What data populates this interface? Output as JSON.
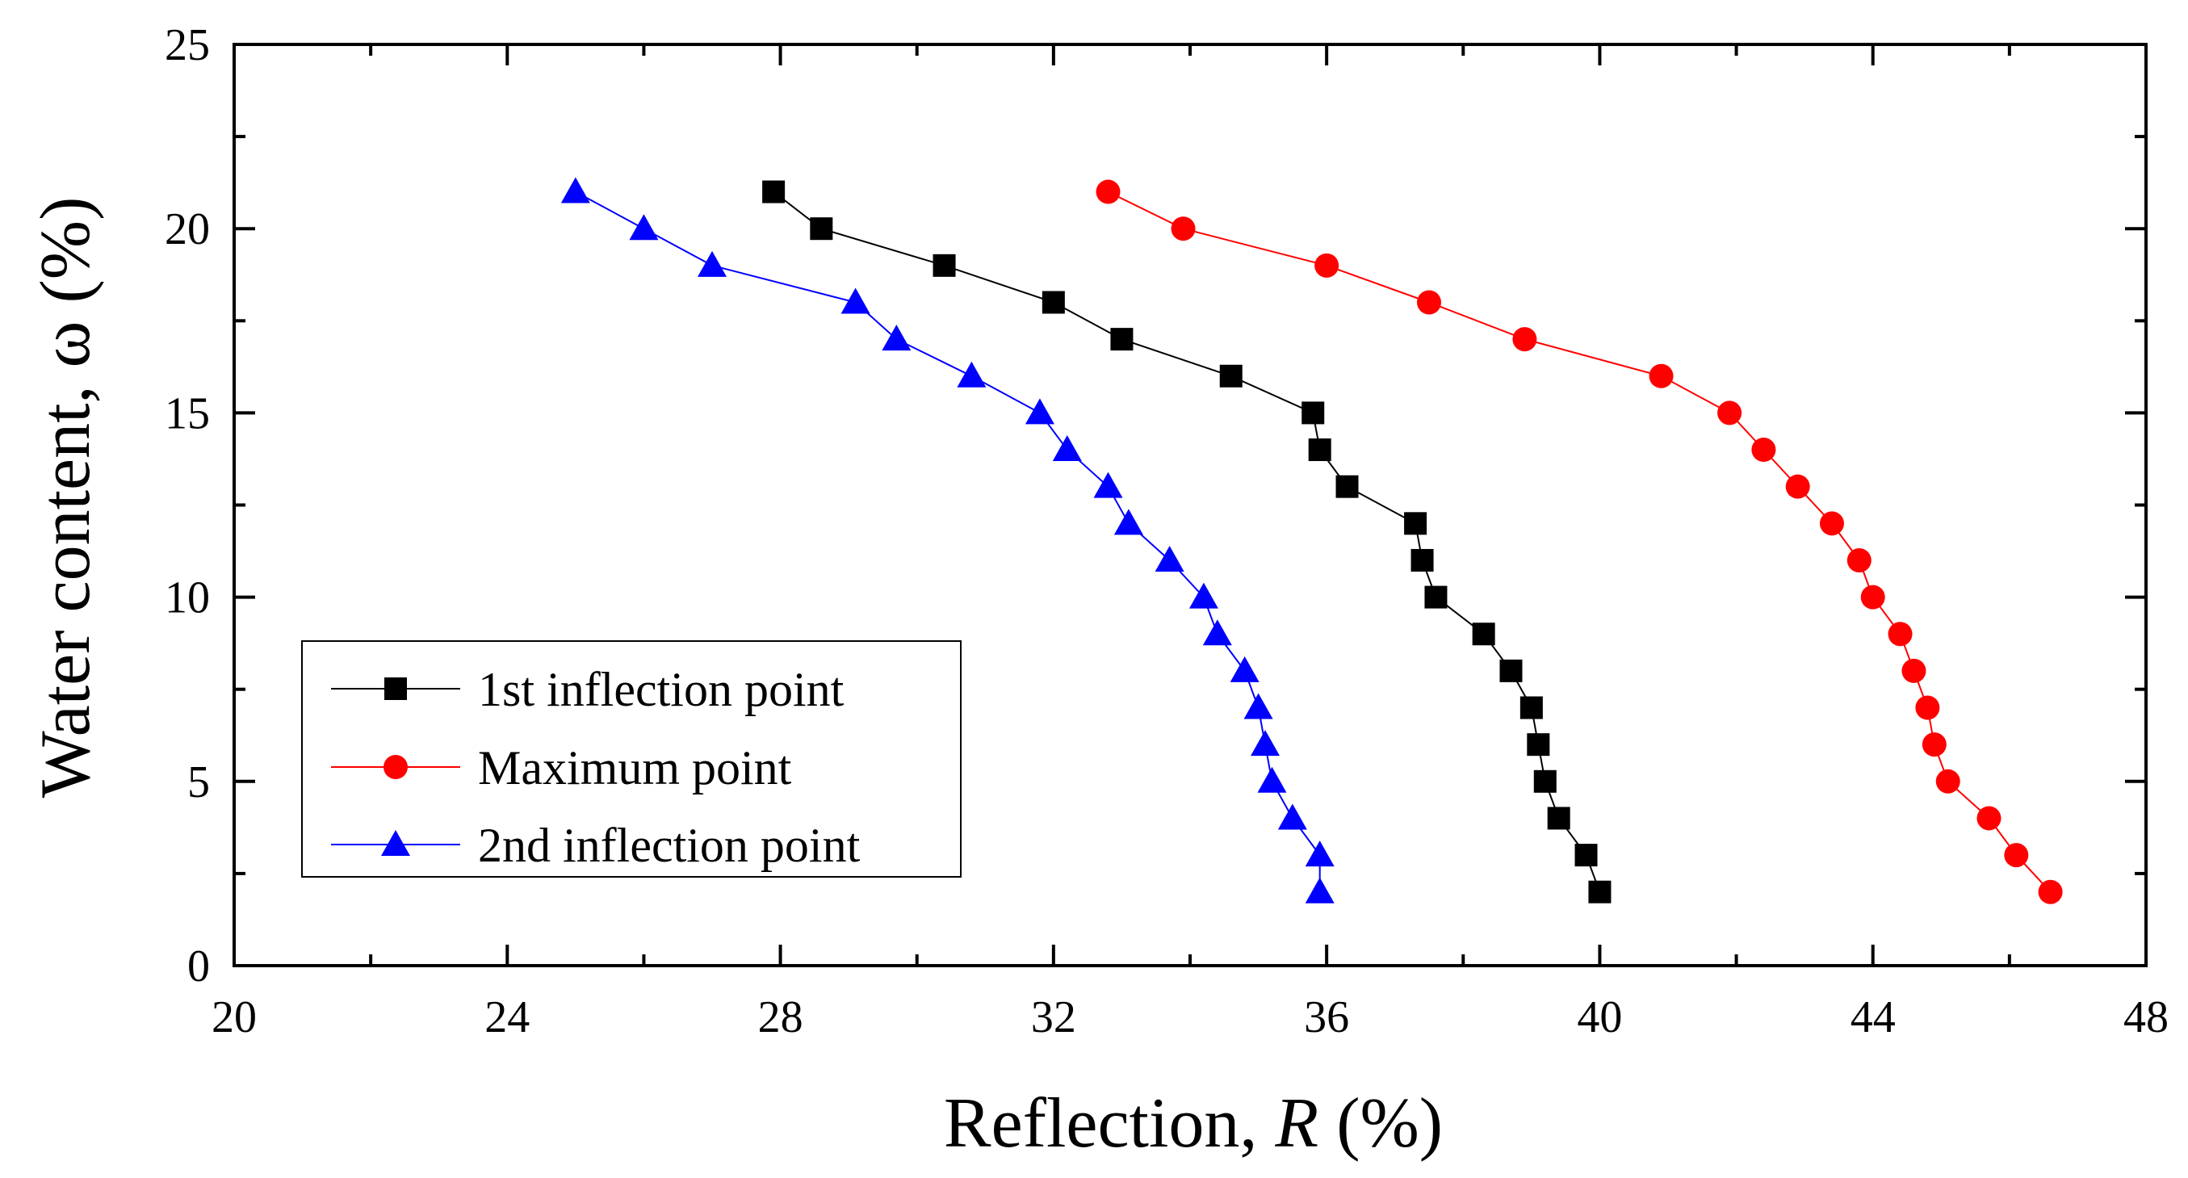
{
  "chart_data": {
    "type": "scatter",
    "title": "",
    "xlabel": {
      "prefix": "Reflection, ",
      "var": "R",
      "suffix": " (%)"
    },
    "ylabel": "Water content, ω (%)",
    "xlim": [
      20,
      48
    ],
    "ylim": [
      0,
      25
    ],
    "xticks": [
      20,
      24,
      28,
      32,
      36,
      40,
      44,
      48
    ],
    "yticks": [
      0,
      5,
      10,
      15,
      20,
      25
    ],
    "legend_position": "lower-left",
    "series": [
      {
        "name": "1st inflection point",
        "marker": "square",
        "color": "#000000",
        "points": [
          [
            27.9,
            21
          ],
          [
            28.6,
            20
          ],
          [
            30.4,
            19
          ],
          [
            32.0,
            18
          ],
          [
            33.0,
            17
          ],
          [
            34.6,
            16
          ],
          [
            35.8,
            15
          ],
          [
            35.9,
            14
          ],
          [
            36.3,
            13
          ],
          [
            37.3,
            12
          ],
          [
            37.4,
            11
          ],
          [
            37.6,
            10
          ],
          [
            38.3,
            9
          ],
          [
            38.7,
            8
          ],
          [
            39.0,
            7
          ],
          [
            39.1,
            6
          ],
          [
            39.2,
            5
          ],
          [
            39.4,
            4
          ],
          [
            39.8,
            3
          ],
          [
            40.0,
            2
          ]
        ]
      },
      {
        "name": "Maximum point",
        "marker": "circle",
        "color": "#ff0000",
        "points": [
          [
            32.8,
            21
          ],
          [
            33.9,
            20
          ],
          [
            36.0,
            19
          ],
          [
            37.5,
            18
          ],
          [
            38.9,
            17
          ],
          [
            40.9,
            16
          ],
          [
            41.9,
            15
          ],
          [
            42.4,
            14
          ],
          [
            42.9,
            13
          ],
          [
            43.4,
            12
          ],
          [
            43.8,
            11
          ],
          [
            44.0,
            10
          ],
          [
            44.4,
            9
          ],
          [
            44.6,
            8
          ],
          [
            44.8,
            7
          ],
          [
            44.9,
            6
          ],
          [
            45.1,
            5
          ],
          [
            45.7,
            4
          ],
          [
            46.1,
            3
          ],
          [
            46.6,
            2
          ]
        ]
      },
      {
        "name": "2nd inflection point",
        "marker": "triangle",
        "color": "#0000ff",
        "points": [
          [
            25.0,
            21
          ],
          [
            26.0,
            20
          ],
          [
            27.0,
            19
          ],
          [
            29.1,
            18
          ],
          [
            29.7,
            17
          ],
          [
            30.8,
            16
          ],
          [
            31.8,
            15
          ],
          [
            32.2,
            14
          ],
          [
            32.8,
            13
          ],
          [
            33.1,
            12
          ],
          [
            33.7,
            11
          ],
          [
            34.2,
            10
          ],
          [
            34.4,
            9
          ],
          [
            34.8,
            8
          ],
          [
            35.0,
            7
          ],
          [
            35.1,
            6
          ],
          [
            35.2,
            5
          ],
          [
            35.5,
            4
          ],
          [
            35.9,
            3
          ],
          [
            35.9,
            2
          ]
        ]
      }
    ]
  }
}
